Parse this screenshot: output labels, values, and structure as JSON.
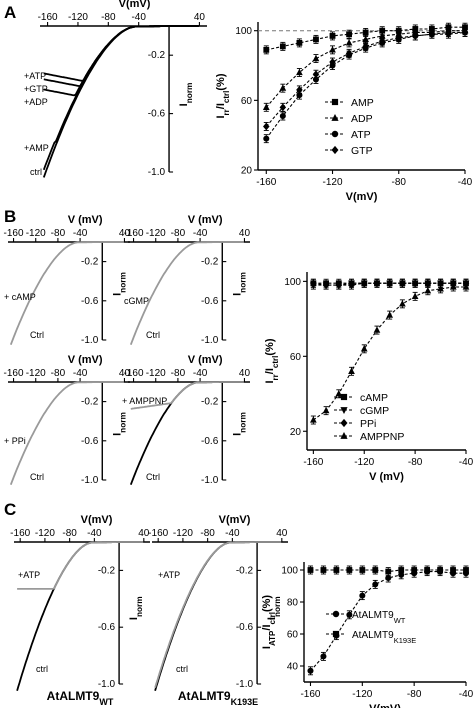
{
  "panels": {
    "A": {
      "label": "A"
    },
    "B": {
      "label": "B"
    },
    "C": {
      "label": "C"
    }
  },
  "traces": {
    "A": {
      "xlabel": "V(mV)",
      "ylabel": "Inorm",
      "xticks": [
        "-160",
        "-120",
        "-80",
        "-40",
        "40"
      ],
      "yticks": [
        "-0.2",
        "-0.6",
        "-1.0"
      ],
      "annotations": [
        "+ATP",
        "+GTP",
        "+ADP",
        "+AMP",
        "ctrl"
      ]
    },
    "B": [
      {
        "xlabel": "V (mV)",
        "ylabel": "Inorm",
        "xticks": [
          "-160",
          "-120",
          "-80",
          "-40",
          "40"
        ],
        "yticks": [
          "-0.2",
          "-0.6",
          "-1.0"
        ],
        "annotations": [
          "+ cAMP",
          "Ctrl"
        ]
      },
      {
        "xlabel": "V (mV)",
        "ylabel": "Inorm",
        "xticks": [
          "-160",
          "-120",
          "-80",
          "-40",
          "40"
        ],
        "yticks": [
          "-0.2",
          "-0.6",
          "-1.0"
        ],
        "annotations": [
          "cGMP",
          "Ctrl"
        ]
      },
      {
        "xlabel": "V (mV)",
        "ylabel": "Inorm",
        "xticks": [
          "-160",
          "-120",
          "-80",
          "-40",
          "40"
        ],
        "yticks": [
          "-0.2",
          "-0.6",
          "-1.0"
        ],
        "annotations": [
          "+ PPi",
          "Ctrl"
        ]
      },
      {
        "xlabel": "V (mV)",
        "ylabel": "Inorm",
        "xticks": [
          "-160",
          "-120",
          "-80",
          "-40",
          "40"
        ],
        "yticks": [
          "-0.2",
          "-0.6",
          "-1.0"
        ],
        "annotations": [
          "+ AMPPNP",
          "Ctrl"
        ]
      }
    ],
    "C": [
      {
        "xlabel": "V(mV)",
        "ylabel": "Inorm",
        "xticks": [
          "-160",
          "-120",
          "-80",
          "-40",
          "40"
        ],
        "yticks": [
          "-0.2",
          "-0.6",
          "-1.0"
        ],
        "annotations": [
          "+ATP",
          "ctrl"
        ],
        "caption": "AtALMT9WT"
      },
      {
        "xlabel": "V(mV)",
        "ylabel": "Inorm",
        "xticks": [
          "-160",
          "-120",
          "-80",
          "-40",
          "40"
        ],
        "yticks": [
          "-0.2",
          "-0.6",
          "-1.0"
        ],
        "annotations": [
          "+ATP",
          "ctrl"
        ],
        "caption": "AtALMT9K193E"
      }
    ]
  },
  "chart_data": [
    {
      "type": "line",
      "panel": "A",
      "xlabel": "V(mV)",
      "ylabel": "Irr/Ictrl(%)",
      "x": [
        -160,
        -150,
        -140,
        -130,
        -120,
        -110,
        -100,
        -90,
        -80,
        -70,
        -60,
        -50,
        -40
      ],
      "xlim": [
        -165,
        -40
      ],
      "ylim": [
        20,
        105
      ],
      "xticks": [
        -160,
        -120,
        -80,
        -40
      ],
      "yticks": [
        20,
        60,
        100
      ],
      "reference_line": 100,
      "legend_position": "center-right",
      "series": [
        {
          "name": "AMP",
          "marker": "square",
          "values": [
            89,
            91,
            93,
            95,
            97,
            98,
            99,
            100,
            100,
            101,
            101,
            102,
            102
          ]
        },
        {
          "name": "ADP",
          "marker": "triangle",
          "values": [
            56,
            67,
            76,
            84,
            89,
            93,
            95,
            97,
            98,
            99,
            99,
            100,
            100
          ]
        },
        {
          "name": "ATP",
          "marker": "circle",
          "values": [
            38,
            51,
            63,
            72,
            80,
            86,
            90,
            93,
            95,
            97,
            98,
            99,
            99
          ]
        },
        {
          "name": "GTP",
          "marker": "diamond",
          "values": [
            45,
            56,
            66,
            75,
            82,
            87,
            91,
            94,
            96,
            97,
            98,
            98,
            99
          ]
        }
      ]
    },
    {
      "type": "line",
      "panel": "B",
      "xlabel": "V (mV)",
      "ylabel": "Irr/Ictrl(%)",
      "x": [
        -160,
        -150,
        -140,
        -130,
        -120,
        -110,
        -100,
        -90,
        -80,
        -70,
        -60,
        -50,
        -40
      ],
      "xlim": [
        -165,
        -40
      ],
      "ylim": [
        10,
        105
      ],
      "xticks": [
        -160,
        -120,
        -80,
        -40
      ],
      "yticks": [
        20,
        60,
        100
      ],
      "legend_position": "bottom-right",
      "series": [
        {
          "name": "cAMP",
          "marker": "square",
          "values": [
            99,
            99,
            99,
            99,
            99,
            99,
            99,
            99,
            99,
            99,
            99,
            99,
            99
          ]
        },
        {
          "name": "cGMP",
          "marker": "triangle-down",
          "values": [
            98,
            98,
            98,
            99,
            99,
            99,
            99,
            99,
            99,
            99,
            99,
            99,
            99
          ]
        },
        {
          "name": "PPi",
          "marker": "diamond",
          "values": [
            99,
            98,
            98,
            98,
            99,
            99,
            99,
            99,
            99,
            99,
            99,
            99,
            99
          ]
        },
        {
          "name": "AMPPNP",
          "marker": "triangle",
          "values": [
            26,
            31,
            40,
            52,
            64,
            74,
            82,
            88,
            92,
            95,
            96,
            97,
            97
          ]
        }
      ]
    },
    {
      "type": "line",
      "panel": "C",
      "xlabel": "V(mV)",
      "ylabel": "IATP/Ictrl(%)",
      "x": [
        -160,
        -150,
        -140,
        -130,
        -120,
        -110,
        -100,
        -90,
        -80,
        -70,
        -60,
        -50,
        -40
      ],
      "xlim": [
        -165,
        -40
      ],
      "ylim": [
        30,
        105
      ],
      "xticks": [
        -160,
        -120,
        -80,
        -40
      ],
      "yticks": [
        40,
        60,
        80,
        100
      ],
      "legend_position": "bottom-right",
      "series": [
        {
          "name": "AtALMT9WT",
          "marker": "circle",
          "values": [
            37,
            46,
            59,
            72,
            84,
            91,
            95,
            97,
            98,
            99,
            99,
            98,
            98
          ]
        },
        {
          "name": "AtALMT9K193E",
          "marker": "square",
          "values": [
            100,
            100,
            100,
            100,
            100,
            100,
            99,
            100,
            100,
            100,
            100,
            100,
            100
          ]
        }
      ]
    }
  ]
}
